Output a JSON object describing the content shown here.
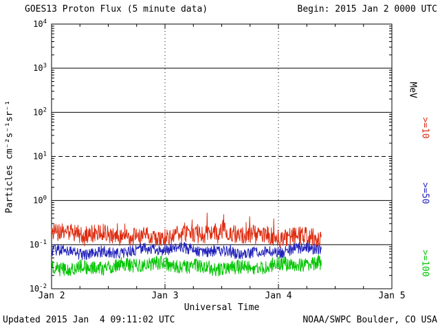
{
  "header": {
    "title": "GOES13 Proton Flux (5 minute data)",
    "begin_label": "Begin: 2015 Jan 2 0000 UTC"
  },
  "footer": {
    "updated": "Updated 2015 Jan  4 09:11:02 UTC",
    "source": "NOAA/SWPC Boulder, CO USA"
  },
  "chart_data": {
    "type": "line",
    "title": "GOES13 Proton Flux (5 minute data)",
    "begin": "2015 Jan 2 0000 UTC",
    "updated": "2015 Jan 4 09:11:02 UTC",
    "xlabel": "Universal Time",
    "ylabel": "Particles cm⁻²s⁻¹sr⁻¹",
    "x_ticks": [
      "Jan 2",
      "Jan 3",
      "Jan 4",
      "Jan 5"
    ],
    "x_range_days": [
      0,
      3
    ],
    "y_log_range": [
      -2,
      4
    ],
    "y_tick_exponents": [
      4,
      3,
      2,
      1,
      0,
      -1,
      -2
    ],
    "h_gridlines": [
      3,
      2,
      1,
      0,
      -1
    ],
    "dashed_exponent": 1,
    "v_gridline_days": [
      1,
      2
    ],
    "grid": true,
    "legend_position": "right-margin-rotated",
    "units_label": "MeV",
    "right_labels": [
      {
        "text": "MeV",
        "color": "#000000"
      },
      {
        "text": ">=10",
        "color": "#dd2c10"
      },
      {
        "text": ">=50",
        "color": "#2222bb"
      },
      {
        "text": ">=100",
        "color": "#00c400"
      }
    ],
    "series": [
      {
        "key": "gte10",
        "name": "Protons >=10 MeV",
        "color": "#dd2c10",
        "approx_mean_flux": 0.17,
        "approx_flux_range": [
          0.08,
          0.45
        ],
        "log10_mean": -0.78,
        "log10_jitter": 0.2,
        "spike_amp": 0.5
      },
      {
        "key": "gte50",
        "name": "Protons >=50 MeV",
        "color": "#2222bb",
        "approx_mean_flux": 0.072,
        "approx_flux_range": [
          0.045,
          0.11
        ],
        "log10_mean": -1.14,
        "log10_jitter": 0.13,
        "spike_amp": 0.12
      },
      {
        "key": "gte100",
        "name": "Protons >=100 MeV",
        "color": "#00c400",
        "approx_mean_flux": 0.032,
        "approx_flux_range": [
          0.014,
          0.06
        ],
        "log10_mean": -1.49,
        "log10_jitter": 0.16,
        "spike_amp": 0.18
      }
    ],
    "points_per_day": 288,
    "data_span_days": 2.383,
    "seed": 20150102
  }
}
